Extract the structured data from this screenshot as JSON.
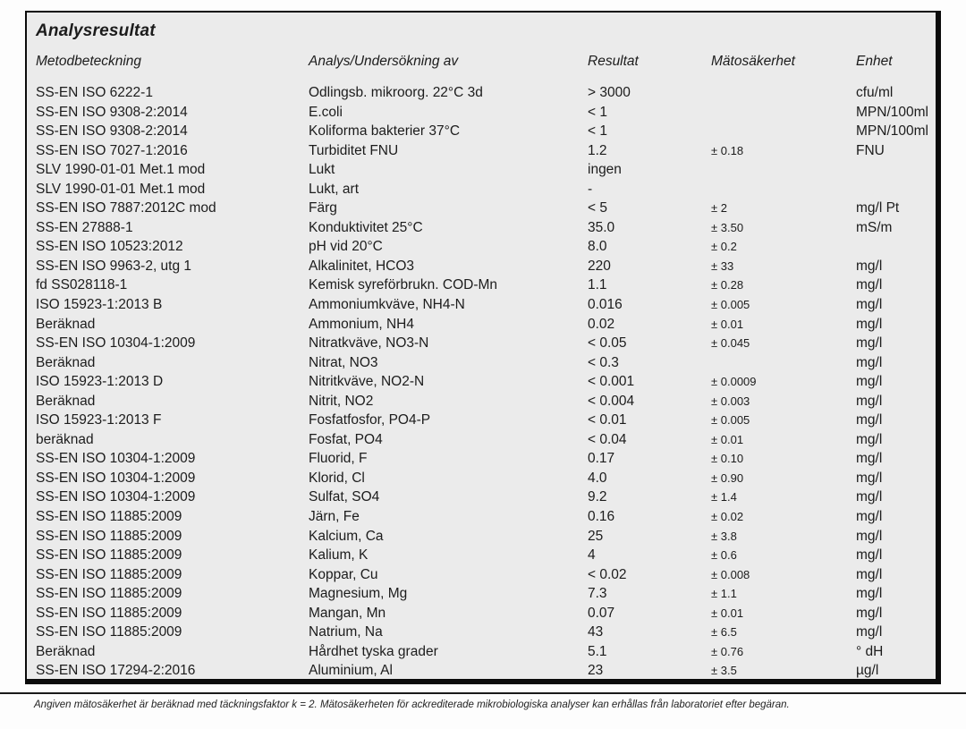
{
  "title": "Analysresultat",
  "table": {
    "columns": [
      {
        "label": "Metodbeteckning"
      },
      {
        "label": "Analys/Undersökning av"
      },
      {
        "label": "Resultat"
      },
      {
        "label": "Mätosäkerhet"
      },
      {
        "label": "Enhet"
      }
    ],
    "rows": [
      {
        "method": "SS-EN ISO 6222-1",
        "analysis": "Odlingsb. mikroorg. 22°C 3d",
        "result": "> 3000",
        "uncertainty": "",
        "unit": "cfu/ml"
      },
      {
        "method": "SS-EN ISO 9308-2:2014",
        "analysis": "E.coli",
        "result": "< 1",
        "uncertainty": "",
        "unit": "MPN/100ml"
      },
      {
        "method": "SS-EN ISO 9308-2:2014",
        "analysis": "Koliforma bakterier 37°C",
        "result": "< 1",
        "uncertainty": "",
        "unit": "MPN/100ml"
      },
      {
        "method": "SS-EN ISO 7027-1:2016",
        "analysis": "Turbiditet FNU",
        "result": "1.2",
        "uncertainty": "± 0.18",
        "unit": "FNU"
      },
      {
        "method": "SLV 1990-01-01 Met.1 mod",
        "analysis": "Lukt",
        "result": "ingen",
        "uncertainty": "",
        "unit": ""
      },
      {
        "method": "SLV 1990-01-01 Met.1 mod",
        "analysis": "Lukt, art",
        "result": "-",
        "uncertainty": "",
        "unit": ""
      },
      {
        "method": "SS-EN ISO 7887:2012C mod",
        "analysis": "Färg",
        "result": "< 5",
        "uncertainty": "± 2",
        "unit": "mg/l Pt"
      },
      {
        "method": "SS-EN 27888-1",
        "analysis": "Konduktivitet 25°C",
        "result": "35.0",
        "uncertainty": "± 3.50",
        "unit": "mS/m"
      },
      {
        "method": "SS-EN ISO 10523:2012",
        "analysis": "pH vid 20°C",
        "result": "8.0",
        "uncertainty": "± 0.2",
        "unit": ""
      },
      {
        "method": "SS-EN ISO 9963-2, utg 1",
        "analysis": "Alkalinitet, HCO3",
        "result": "220",
        "uncertainty": "± 33",
        "unit": "mg/l"
      },
      {
        "method": "fd SS028118-1",
        "analysis": "Kemisk syreförbrukn. COD-Mn",
        "result": "1.1",
        "uncertainty": "± 0.28",
        "unit": "mg/l"
      },
      {
        "method": "ISO 15923-1:2013 B",
        "analysis": "Ammoniumkväve, NH4-N",
        "result": "0.016",
        "uncertainty": "± 0.005",
        "unit": "mg/l"
      },
      {
        "method": "Beräknad",
        "analysis": "Ammonium, NH4",
        "result": "0.02",
        "uncertainty": "± 0.01",
        "unit": "mg/l"
      },
      {
        "method": "SS-EN ISO 10304-1:2009",
        "analysis": "Nitratkväve, NO3-N",
        "result": "< 0.05",
        "uncertainty": "± 0.045",
        "unit": "mg/l"
      },
      {
        "method": "Beräknad",
        "analysis": "Nitrat, NO3",
        "result": "< 0.3",
        "uncertainty": "",
        "unit": "mg/l"
      },
      {
        "method": "ISO 15923-1:2013 D",
        "analysis": "Nitritkväve, NO2-N",
        "result": "< 0.001",
        "uncertainty": "± 0.0009",
        "unit": "mg/l"
      },
      {
        "method": "Beräknad",
        "analysis": "Nitrit, NO2",
        "result": "< 0.004",
        "uncertainty": "± 0.003",
        "unit": "mg/l"
      },
      {
        "method": "ISO 15923-1:2013 F",
        "analysis": "Fosfatfosfor, PO4-P",
        "result": "< 0.01",
        "uncertainty": "± 0.005",
        "unit": "mg/l"
      },
      {
        "method": "beräknad",
        "analysis": "Fosfat, PO4",
        "result": "< 0.04",
        "uncertainty": "± 0.01",
        "unit": "mg/l"
      },
      {
        "method": "SS-EN ISO 10304-1:2009",
        "analysis": "Fluorid, F",
        "result": "0.17",
        "uncertainty": "± 0.10",
        "unit": "mg/l"
      },
      {
        "method": "SS-EN ISO 10304-1:2009",
        "analysis": "Klorid, Cl",
        "result": "4.0",
        "uncertainty": "± 0.90",
        "unit": "mg/l"
      },
      {
        "method": "SS-EN ISO 10304-1:2009",
        "analysis": "Sulfat, SO4",
        "result": "9.2",
        "uncertainty": "± 1.4",
        "unit": "mg/l"
      },
      {
        "method": "SS-EN ISO 11885:2009",
        "analysis": "Järn, Fe",
        "result": "0.16",
        "uncertainty": "± 0.02",
        "unit": "mg/l"
      },
      {
        "method": "SS-EN ISO 11885:2009",
        "analysis": "Kalcium, Ca",
        "result": "25",
        "uncertainty": "± 3.8",
        "unit": "mg/l"
      },
      {
        "method": "SS-EN ISO 11885:2009",
        "analysis": "Kalium, K",
        "result": "4",
        "uncertainty": "± 0.6",
        "unit": "mg/l"
      },
      {
        "method": "SS-EN ISO 11885:2009",
        "analysis": "Koppar, Cu",
        "result": "< 0.02",
        "uncertainty": "± 0.008",
        "unit": "mg/l"
      },
      {
        "method": "SS-EN ISO 11885:2009",
        "analysis": "Magnesium, Mg",
        "result": "7.3",
        "uncertainty": "± 1.1",
        "unit": "mg/l"
      },
      {
        "method": "SS-EN ISO 11885:2009",
        "analysis": "Mangan, Mn",
        "result": "0.07",
        "uncertainty": "± 0.01",
        "unit": "mg/l"
      },
      {
        "method": "SS-EN ISO 11885:2009",
        "analysis": "Natrium, Na",
        "result": "43",
        "uncertainty": "± 6.5",
        "unit": "mg/l"
      },
      {
        "method": "Beräknad",
        "analysis": "Hårdhet tyska grader",
        "result": "5.1",
        "uncertainty": "± 0.76",
        "unit": "° dH"
      },
      {
        "method": "SS-EN ISO 17294-2:2016",
        "analysis": "Aluminium, Al",
        "result": "23",
        "uncertainty": "± 3.5",
        "unit": "µg/l"
      }
    ]
  },
  "footer_note": "Angiven mätosäkerhet är beräknad med täckningsfaktor k = 2. Mätosäkerheten för ackrediterade mikrobiologiska analyser kan erhållas från laboratoriet efter begäran.",
  "colors": {
    "box_background": "#ebebeb",
    "border": "#0b0b0b",
    "text": "#1c1c1c"
  }
}
